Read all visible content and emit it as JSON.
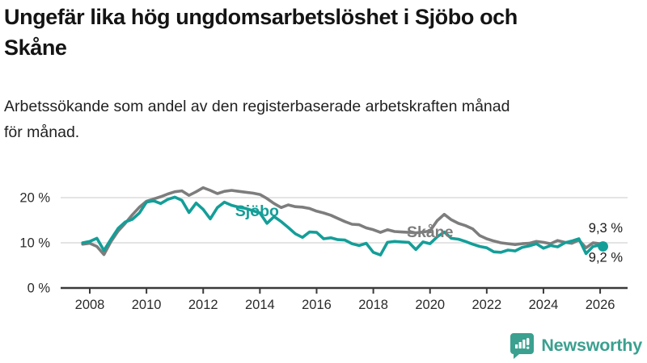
{
  "header": {
    "title": "Ungefär lika hög ungdomsarbetslöshet i Sjöbo och\nSkåne",
    "subtitle": "Arbetssökande som andel av den registerbaserade arbetskraften månad\nför månad."
  },
  "chart_data": {
    "type": "line",
    "x": [
      2007.75,
      2008.0,
      2008.25,
      2008.5,
      2008.75,
      2009.0,
      2009.25,
      2009.5,
      2009.75,
      2010.0,
      2010.25,
      2010.5,
      2010.75,
      2011.0,
      2011.25,
      2011.5,
      2011.75,
      2012.0,
      2012.25,
      2012.5,
      2012.75,
      2013.0,
      2013.25,
      2013.5,
      2013.75,
      2014.0,
      2014.25,
      2014.5,
      2014.75,
      2015.0,
      2015.25,
      2015.5,
      2015.75,
      2016.0,
      2016.25,
      2016.5,
      2016.75,
      2017.0,
      2017.25,
      2017.5,
      2017.75,
      2018.0,
      2018.25,
      2018.5,
      2018.75,
      2019.0,
      2019.25,
      2019.5,
      2019.75,
      2020.0,
      2020.25,
      2020.5,
      2020.75,
      2021.0,
      2021.25,
      2021.5,
      2021.75,
      2022.0,
      2022.25,
      2022.5,
      2022.75,
      2023.0,
      2023.25,
      2023.5,
      2023.75,
      2024.0,
      2024.25,
      2024.5,
      2024.75,
      2025.0,
      2025.25,
      2025.5,
      2025.75,
      2026.0,
      2026.1
    ],
    "series": [
      {
        "name": "Skåne",
        "color": "#7d7d7d",
        "values": [
          9.7,
          9.9,
          9.2,
          7.4,
          10.3,
          12.6,
          14.3,
          16.2,
          17.9,
          19.2,
          19.7,
          20.2,
          20.8,
          21.3,
          21.5,
          20.5,
          21.3,
          22.2,
          21.6,
          20.9,
          21.4,
          21.6,
          21.4,
          21.2,
          21.0,
          20.7,
          19.8,
          18.7,
          17.8,
          18.4,
          18.0,
          17.9,
          17.6,
          17.0,
          16.6,
          16.1,
          15.4,
          14.7,
          14.1,
          14.0,
          13.3,
          12.9,
          12.3,
          12.9,
          12.5,
          12.4,
          12.3,
          12.2,
          12.4,
          12.6,
          14.9,
          16.3,
          15.1,
          14.3,
          13.8,
          13.1,
          11.6,
          10.9,
          10.4,
          10.0,
          9.8,
          9.6,
          9.8,
          9.9,
          10.3,
          10.1,
          9.8,
          10.5,
          10.1,
          9.9,
          10.6,
          8.9,
          10.0,
          9.8,
          9.3
        ],
        "end_value": 9.3,
        "end_label": "9,3 %",
        "end_label_side": "above",
        "end_dot": false,
        "inline_label": {
          "x": 2020.0,
          "y": 12.3
        }
      },
      {
        "name": "Sjöbo",
        "color": "#149e98",
        "values": [
          10.0,
          10.3,
          11.0,
          8.3,
          10.8,
          13.2,
          14.6,
          15.2,
          16.6,
          19.0,
          19.3,
          18.7,
          19.6,
          20.1,
          19.4,
          16.7,
          18.8,
          17.4,
          15.3,
          17.8,
          19.0,
          18.3,
          17.9,
          17.6,
          17.1,
          16.6,
          14.3,
          15.8,
          14.7,
          13.4,
          12.0,
          11.2,
          12.4,
          12.3,
          10.9,
          11.1,
          10.7,
          10.6,
          9.8,
          9.4,
          9.9,
          7.9,
          7.3,
          10.1,
          10.3,
          10.2,
          10.1,
          8.5,
          10.2,
          9.8,
          11.3,
          12.4,
          11.0,
          10.8,
          10.3,
          9.7,
          9.2,
          8.9,
          8.0,
          7.9,
          8.4,
          8.2,
          9.0,
          9.3,
          9.8,
          8.8,
          9.4,
          9.1,
          10.0,
          10.4,
          10.9,
          7.6,
          9.2,
          9.5,
          9.2
        ],
        "end_value": 9.2,
        "end_label": "9,2 %",
        "end_label_side": "below",
        "end_dot": true,
        "inline_label": {
          "x": 2013.9,
          "y": 17.0
        }
      }
    ],
    "yticks": [
      0,
      10,
      20
    ],
    "ytick_labels": [
      "0 %",
      "10 %",
      "20 %"
    ],
    "xticks": [
      2008,
      2010,
      2012,
      2014,
      2016,
      2018,
      2020,
      2022,
      2024,
      2026
    ],
    "xlim": [
      2007.75,
      2026.2
    ],
    "ylim": [
      0,
      24
    ],
    "grid": "horizontal",
    "legend_position": "inline-labels",
    "colors": {
      "grid_line": "#dcdcdc",
      "axis_line": "#3a3a3a",
      "tick_text": "#2b2b2b",
      "end_label_text": "#1a1a1a"
    }
  },
  "footer": {
    "brand": "Newsworthy",
    "brand_color": "#3ba08f",
    "logo_icon": "bar-chart-speech-bubble"
  }
}
